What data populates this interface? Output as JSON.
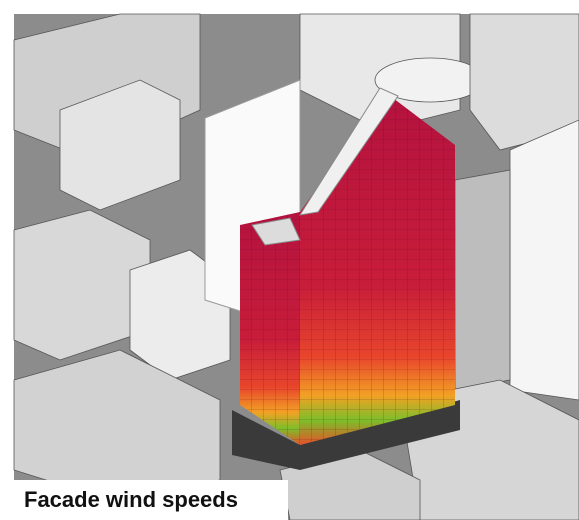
{
  "caption": "Facade wind speeds"
}
